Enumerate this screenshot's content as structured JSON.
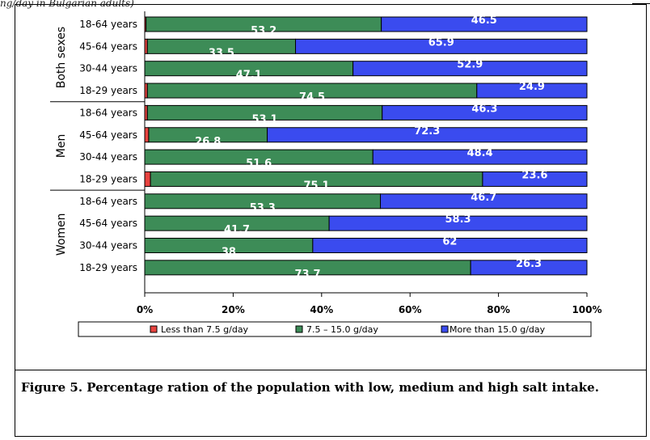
{
  "header_fragment": "ng/day in Bulgarian adults)",
  "caption": "Figure 5. Percentage ration of the population with low, medium and high salt intake.",
  "chart_data": {
    "type": "bar",
    "orientation": "horizontal",
    "stacked": "100%",
    "groups": [
      "Both sexes",
      "Men",
      "Women"
    ],
    "categories": [
      "18-64 years",
      "45-64 years",
      "30-44 years",
      "18-29 years"
    ],
    "series": [
      {
        "name": "Less than 7.5 g/day",
        "color": "#e8433f",
        "values": {
          "Both sexes": [
            0.3,
            0.6,
            0,
            0.6
          ],
          "Men": [
            0.6,
            0.9,
            0,
            1.3
          ],
          "Women": [
            0,
            0,
            0,
            0
          ]
        }
      },
      {
        "name": "7.5 – 15.0 g/day",
        "color": "#3d8c57",
        "values": {
          "Both sexes": [
            53.2,
            33.5,
            47.1,
            74.5
          ],
          "Men": [
            53.1,
            26.8,
            51.6,
            75.1
          ],
          "Women": [
            53.3,
            41.7,
            38,
            73.7
          ]
        }
      },
      {
        "name": "More than 15.0 g/day",
        "color": "#3a4bef",
        "values": {
          "Both sexes": [
            46.5,
            65.9,
            52.9,
            24.9
          ],
          "Men": [
            46.3,
            72.3,
            48.4,
            23.6
          ],
          "Women": [
            46.7,
            58.3,
            62,
            26.3
          ]
        }
      }
    ],
    "x_ticks": [
      "0%",
      "20%",
      "40%",
      "60%",
      "80%",
      "100%"
    ],
    "xlim": [
      0,
      100
    ],
    "legend_position": "bottom",
    "grid": false
  }
}
